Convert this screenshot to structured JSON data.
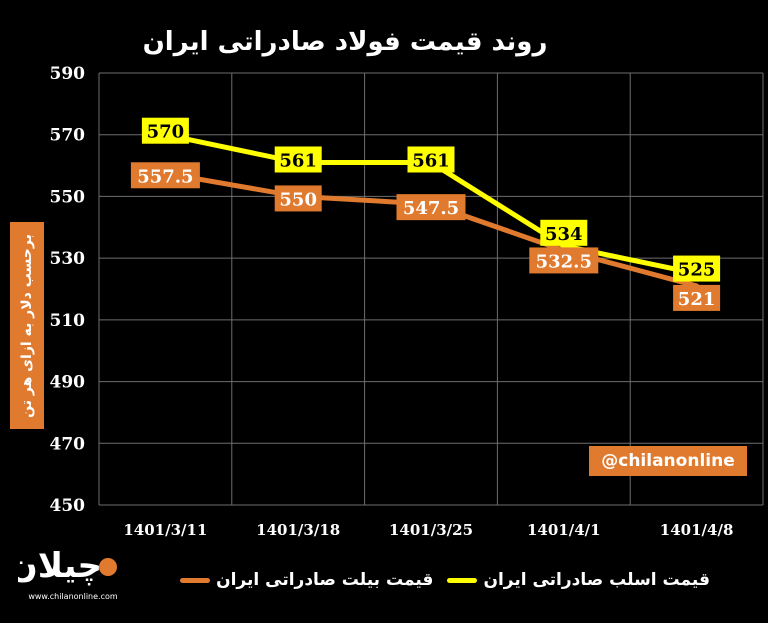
{
  "page_title": "روند قیمت فولاد صادراتی ایران",
  "y_axis_label": "برحسب دلار به ازای هر تن",
  "watermark_handle": "@chilanonline",
  "logo": {
    "icon": "chilan-logo",
    "text": "چیلان",
    "url": "www.chilanonline.com"
  },
  "colors": {
    "background": "#000000",
    "billet": "#e07a2e",
    "slab": "#ffff00",
    "grid": "#6e6e6e"
  },
  "chart_data": {
    "type": "line",
    "title": "روند قیمت فولاد صادراتی ایران",
    "ylabel": "برحسب دلار به ازای هر تن",
    "xlabel": "",
    "categories": [
      "1401/3/11",
      "1401/3/18",
      "1401/3/25",
      "1401/4/1",
      "1401/4/8"
    ],
    "ylim": [
      450,
      590
    ],
    "yticks": [
      450,
      470,
      490,
      510,
      530,
      550,
      570,
      590
    ],
    "grid": true,
    "legend_position": "bottom",
    "series": [
      {
        "name": "قیمت اسلب صادراتی ایران",
        "color": "#ffff00",
        "values": [
          570,
          561,
          561,
          534,
          525
        ],
        "labels": [
          "570",
          "561",
          "561",
          "534",
          "525"
        ]
      },
      {
        "name": "قیمت بیلت صادراتی ایران",
        "color": "#e07a2e",
        "values": [
          557.5,
          550,
          547.5,
          532.5,
          521
        ],
        "labels": [
          "557.5",
          "550",
          "547.5",
          "532.5",
          "521"
        ]
      }
    ]
  }
}
